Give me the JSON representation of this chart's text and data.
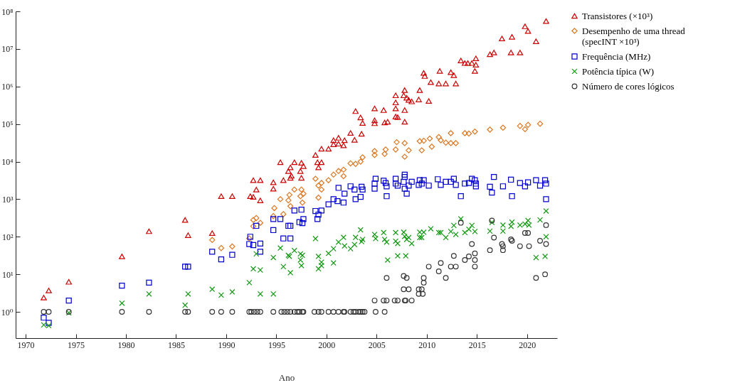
{
  "chart_data": {
    "type": "scatter",
    "xlabel": "Ano",
    "log": "y",
    "legend": "right",
    "xlim": [
      1969,
      2023
    ],
    "xticks": [
      1970,
      1975,
      1980,
      1985,
      1990,
      1995,
      2000,
      2005,
      2010,
      2015,
      2020
    ],
    "ylim": [
      0.2,
      100000000
    ],
    "yticks": [
      {
        "value": 1,
        "label": "10⁰"
      },
      {
        "value": 10,
        "label": "10¹"
      },
      {
        "value": 100,
        "label": "10²"
      },
      {
        "value": 1000,
        "label": "10³"
      },
      {
        "value": 10000,
        "label": "10⁴"
      },
      {
        "value": 100000,
        "label": "10⁵"
      },
      {
        "value": 1000000,
        "label": "10⁶"
      },
      {
        "value": 10000000,
        "label": "10⁷"
      },
      {
        "value": 100000000,
        "label": "10⁸"
      }
    ],
    "series": [
      {
        "name": "Transistores (×10³)",
        "color": "#cc0000",
        "marker": "triangle",
        "x": [
          1971.8,
          1972.3,
          1974.3,
          1979.6,
          1982.3,
          1985.9,
          1986.2,
          1988.6,
          1989.5,
          1990.6,
          1992.7,
          1993.4,
          1993.0,
          1992.4,
          1992.7,
          1993.4,
          1994.7,
          1994.7,
          1995.4,
          1995.7,
          1996.2,
          1996.4,
          1996.5,
          1996.4,
          1996.8,
          1997.4,
          1997.5,
          1997.5,
          1997.7,
          1998.9,
          1999.1,
          1999.5,
          1999.2,
          1999.5,
          2000.2,
          2000.7,
          2000.7,
          2001.2,
          2001.2,
          2001.7,
          2001.8,
          2002.4,
          2002.8,
          2002.9,
          2003.4,
          2003.6,
          2003.5,
          2004.8,
          2004.8,
          2004.8,
          2005.7,
          2005.8,
          2006.1,
          2006.9,
          2006.9,
          2007.7,
          2007.8,
          2008.0,
          2008.2,
          2008.5,
          2006.9,
          2006.9,
          2007.8,
          2007.1,
          2007.8,
          2009.2,
          2009.3,
          2010.2,
          2009.7,
          2009.8,
          2010.4,
          2011.2,
          2011.3,
          2011.9,
          2012.4,
          2012.7,
          2012.9,
          2013.4,
          2013.8,
          2014.1,
          2014.5,
          2014.9,
          2014.9,
          2014.8,
          2016.3,
          2016.7,
          2017.5,
          2018.5,
          2018.4,
          2019.3,
          2019.8,
          2020.1,
          2020.9,
          2021.9
        ],
        "values": [
          2.4,
          3.7,
          6.3,
          30,
          140,
          280,
          110,
          125,
          1200,
          1200,
          3200,
          3200,
          1800,
          1200,
          1150,
          930,
          2800,
          1900,
          9600,
          3200,
          5600,
          7000,
          4200,
          3700,
          9600,
          5600,
          3700,
          9300,
          7600,
          15000,
          9600,
          9600,
          7000,
          22000,
          22000,
          37000,
          29000,
          43000,
          30000,
          27000,
          37000,
          58000,
          38000,
          220000,
          150000,
          107000,
          55000,
          260000,
          126000,
          105000,
          235000,
          110000,
          115000,
          158000,
          580000,
          580000,
          800000,
          500000,
          440000,
          400000,
          375000,
          260000,
          235000,
          152000,
          115000,
          450000,
          800000,
          410000,
          2300000,
          1900000,
          1300000,
          1200000,
          2600000,
          1200000,
          2400000,
          2000000,
          1200000,
          4900000,
          4200000,
          4200000,
          4200000,
          5600000,
          3800000,
          2600000,
          7200000,
          8000000,
          19000000,
          21000000,
          8000000,
          8000000,
          40000000,
          30000000,
          16000000,
          55000000
        ]
      },
      {
        "name": "Desempenho de uma thread (specINT ×10³)",
        "color": "#dd7722",
        "marker": "diamond",
        "x": [
          1988.6,
          1989.5,
          1990.6,
          1992.3,
          1992.7,
          1993.0,
          1992.7,
          1993.4,
          1994.8,
          1994.7,
          1995.4,
          1995.7,
          1996.2,
          1996.3,
          1996.4,
          1996.8,
          1997.4,
          1997.5,
          1997.7,
          1997.6,
          1998.9,
          1999.2,
          1999.5,
          1999.5,
          1999.2,
          2000.2,
          2000.7,
          2001.2,
          2001.7,
          2001.7,
          2002.4,
          2002.9,
          2003.4,
          2003.6,
          2004.8,
          2004.8,
          2005.9,
          2005.8,
          2006.9,
          2007.0,
          2007.8,
          2007.8,
          2008.2,
          2009.3,
          2009.5,
          2009.7,
          2010.3,
          2010.5,
          2011.2,
          2011.4,
          2011.9,
          2012.4,
          2012.4,
          2012.9,
          2013.8,
          2014.2,
          2014.8,
          2016.3,
          2017.6,
          2019.3,
          2019.8,
          2020.1,
          2021.3
        ],
        "values": [
          82,
          50,
          55,
          90,
          190,
          315,
          280,
          235,
          580,
          355,
          1000,
          400,
          930,
          1300,
          650,
          1800,
          1200,
          1800,
          1400,
          810,
          3500,
          2300,
          2700,
          1800,
          1100,
          3200,
          4500,
          5600,
          6100,
          4100,
          9000,
          8700,
          10000,
          13000,
          19000,
          15000,
          21000,
          16000,
          21000,
          33000,
          31000,
          13500,
          20000,
          35000,
          20000,
          36000,
          41000,
          25000,
          45000,
          37000,
          32000,
          57000,
          31000,
          31000,
          57000,
          56000,
          63000,
          71000,
          80000,
          89000,
          73000,
          95000,
          102000
        ]
      },
      {
        "name": "Frequência (MHz)",
        "color": "#0000cc",
        "marker": "square",
        "x": [
          1971.8,
          1972.3,
          1974.3,
          1979.6,
          1982.3,
          1985.9,
          1986.2,
          1988.6,
          1989.5,
          1990.6,
          1992.3,
          1992.4,
          1992.7,
          1993.0,
          1993.4,
          1993.4,
          1994.7,
          1994.7,
          1995.4,
          1995.7,
          1996.2,
          1996.4,
          1996.4,
          1996.8,
          1997.5,
          1997.3,
          1997.6,
          1997.7,
          1998.9,
          1999.2,
          1999.5,
          1999.1,
          2000.2,
          2000.7,
          2001.1,
          2001.7,
          2001.2,
          2001.8,
          2002.4,
          2002.8,
          2002.9,
          2003.4,
          2003.5,
          2003.6,
          2004.9,
          2004.8,
          2004.8,
          2005.7,
          2005.9,
          2006.0,
          2006.0,
          2006.9,
          2006.9,
          2007.1,
          2007.7,
          2007.8,
          2007.8,
          2007.8,
          2008.0,
          2008.2,
          2008.5,
          2009.2,
          2009.3,
          2009.5,
          2009.7,
          2010.2,
          2011.1,
          2011.4,
          2011.9,
          2012.4,
          2012.7,
          2012.9,
          2013.4,
          2013.8,
          2014.2,
          2014.5,
          2014.8,
          2014.9,
          2014.9,
          2016.3,
          2016.5,
          2016.7,
          2017.6,
          2018.4,
          2018.5,
          2019.3,
          2019.8,
          2020.1,
          2020.9,
          2021.3,
          2021.8,
          2021.9,
          2021.9
        ],
        "values": [
          0.7,
          0.51,
          2,
          5,
          6,
          16,
          16,
          40,
          25,
          33,
          64,
          100,
          60,
          195,
          66,
          40,
          295,
          150,
          295,
          90,
          195,
          195,
          90,
          500,
          525,
          245,
          230,
          295,
          485,
          390,
          500,
          295,
          730,
          1000,
          890,
          810,
          2000,
          1400,
          2200,
          1800,
          1000,
          1150,
          2150,
          1800,
          3500,
          2600,
          1900,
          3100,
          2700,
          2200,
          1200,
          3500,
          2600,
          2300,
          2900,
          4500,
          3900,
          1900,
          1400,
          2300,
          2900,
          2400,
          3200,
          2600,
          3200,
          2300,
          3400,
          2400,
          2900,
          2900,
          3500,
          2400,
          1200,
          2600,
          2700,
          3500,
          3200,
          2600,
          2200,
          2150,
          1500,
          3900,
          2200,
          3300,
          1200,
          2700,
          2200,
          2800,
          3200,
          2300,
          3200,
          2600,
          1000
        ]
      },
      {
        "name": "Potência típica (W)",
        "color": "#119911",
        "marker": "cross",
        "x": [
          1971.8,
          1972.3,
          1974.3,
          1979.6,
          1982.3,
          1985.9,
          1986.2,
          1988.6,
          1989.5,
          1990.6,
          1992.3,
          1993.0,
          1992.7,
          1993.4,
          1993.4,
          1994.7,
          1994.7,
          1995.4,
          1995.7,
          1996.2,
          1996.3,
          1996.4,
          1996.8,
          1997.4,
          1997.4,
          1997.6,
          1997.5,
          1998.9,
          1999.2,
          1999.5,
          1999.5,
          1999.2,
          2000.2,
          2000.7,
          2000.7,
          2001.2,
          2001.7,
          2001.8,
          2002.4,
          2002.9,
          2002.8,
          2003.5,
          2003.4,
          2003.6,
          2004.8,
          2004.9,
          2005.7,
          2005.8,
          2006.0,
          2006.1,
          2006.9,
          2007.1,
          2007.1,
          2006.9,
          2007.7,
          2007.8,
          2007.9,
          2008.0,
          2008.2,
          2008.5,
          2009.3,
          2009.3,
          2009.5,
          2009.7,
          2010.4,
          2011.2,
          2011.4,
          2011.9,
          2012.4,
          2012.7,
          2012.9,
          2013.4,
          2013.8,
          2014.2,
          2014.5,
          2014.8,
          2016.3,
          2016.5,
          2017.6,
          2017.6,
          2018.5,
          2018.4,
          2019.3,
          2019.8,
          2020.1,
          2020.2,
          2020.9,
          2021.3,
          2021.8,
          2021.9,
          2021.9
        ],
        "values": [
          0.45,
          0.43,
          0.94,
          1.7,
          3,
          1.5,
          3,
          4,
          2.8,
          3.4,
          6,
          35,
          14,
          13,
          3,
          28,
          3,
          50,
          16,
          32,
          30,
          11,
          43,
          35,
          24,
          32,
          17,
          89,
          30,
          21,
          17,
          14,
          36,
          48,
          20,
          72,
          96,
          57,
          48,
          96,
          62,
          74,
          152,
          85,
          115,
          89,
          129,
          85,
          72,
          24,
          129,
          66,
          31,
          76,
          132,
          102,
          31,
          85,
          95,
          66,
          132,
          95,
          95,
          132,
          163,
          129,
          129,
          95,
          138,
          200,
          115,
          300,
          129,
          158,
          200,
          138,
          141,
          240,
          204,
          141,
          245,
          190,
          204,
          219,
          270,
          204,
          28,
          280,
          30,
          100,
          485
        ]
      },
      {
        "name": "Número de cores lógicos",
        "color": "#333333",
        "marker": "circle",
        "x": [
          1971.8,
          1972.3,
          1974.3,
          1979.6,
          1982.3,
          1985.9,
          1986.2,
          1988.6,
          1989.5,
          1990.6,
          1992.3,
          1992.5,
          1992.8,
          1993.1,
          1993.4,
          1994.7,
          1995.5,
          1995.8,
          1996.1,
          1996.4,
          1996.8,
          1997.1,
          1997.3,
          1997.6,
          1997.7,
          1998.8,
          1999.2,
          1999.5,
          2000.2,
          2000.7,
          2001.2,
          2001.7,
          2001.8,
          2002.4,
          2002.7,
          2002.9,
          2003.2,
          2003.4,
          2003.6,
          2003.8,
          2004.9,
          2005.8,
          2004.8,
          2005.7,
          2006.0,
          2006.8,
          2007.1,
          2007.8,
          2007.9,
          2008.5,
          2006.0,
          2007.7,
          2008.0,
          2007.7,
          2008.2,
          2009.2,
          2009.5,
          2009.2,
          2009.6,
          2009.7,
          2009.7,
          2010.2,
          2011.2,
          2011.4,
          2011.9,
          2012.4,
          2012.9,
          2012.7,
          2013.4,
          2013.8,
          2014.2,
          2014.5,
          2014.8,
          2014.8,
          2014.8,
          2016.5,
          2016.7,
          2016.3,
          2017.5,
          2017.6,
          2017.6,
          2018.4,
          2018.5,
          2019.3,
          2019.8,
          2020.1,
          2020.2,
          2020.9,
          2021.3,
          2021.8,
          2021.9,
          2021.9
        ],
        "values": [
          1,
          1,
          1,
          1,
          1,
          1,
          1,
          1,
          1,
          1,
          1,
          1,
          1,
          1,
          1,
          1,
          1,
          1,
          1,
          1,
          1,
          1,
          1,
          1,
          1,
          1,
          1,
          1,
          1,
          1,
          1,
          1,
          1,
          1,
          1,
          1,
          1,
          1,
          1,
          1,
          1,
          1,
          2,
          2,
          2,
          2,
          2,
          2,
          2,
          2,
          8,
          9,
          8,
          4,
          4,
          4,
          4,
          3,
          3,
          8,
          6,
          16,
          12,
          20,
          8,
          16,
          16,
          31,
          235,
          24,
          30,
          64,
          36,
          24,
          16,
          270,
          95,
          44,
          64,
          56,
          44,
          85,
          78,
          56,
          126,
          126,
          56,
          8,
          78,
          10,
          204,
          64
        ]
      }
    ]
  }
}
